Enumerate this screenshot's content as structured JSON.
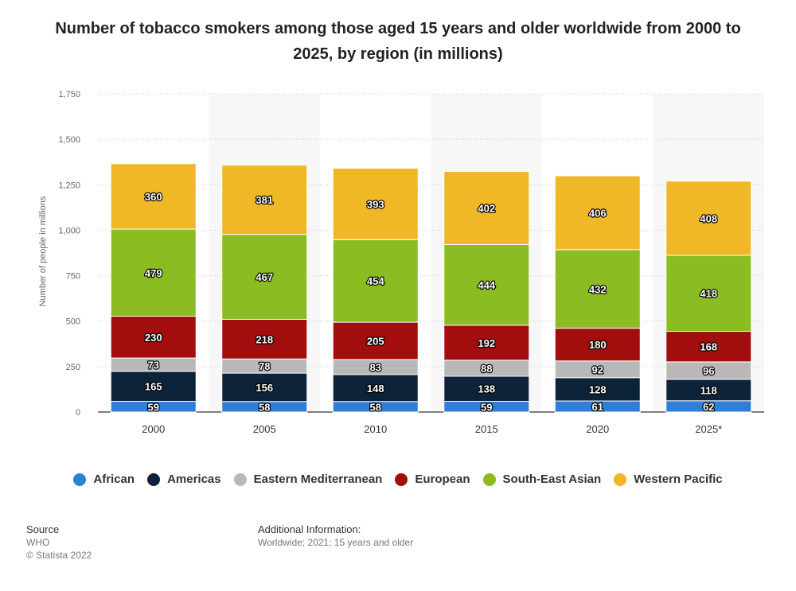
{
  "header": {
    "title": "Number of tobacco smokers among those aged 15 years and older worldwide from 2000 to 2025, by region (in millions)"
  },
  "chart_data": {
    "type": "bar",
    "stacked": true,
    "title": "Number of tobacco smokers among those aged 15 years and older worldwide from 2000 to 2025, by region (in millions)",
    "xlabel": "",
    "ylabel": "Number of people in millions",
    "ylim": [
      0,
      1750
    ],
    "yticks": [
      0,
      250,
      500,
      750,
      "1,000",
      "1,250",
      "1,500",
      "1,750"
    ],
    "ytick_values": [
      0,
      250,
      500,
      750,
      1000,
      1250,
      1500,
      1750
    ],
    "categories": [
      "2000",
      "2005",
      "2010",
      "2015",
      "2020",
      "2025*"
    ],
    "grid": true,
    "legend_position": "bottom",
    "series": [
      {
        "name": "African",
        "color": "#2f7ed8",
        "values": [
          59,
          58,
          58,
          59,
          61,
          62
        ]
      },
      {
        "name": "Americas",
        "color": "#0d233a",
        "values": [
          165,
          156,
          148,
          138,
          128,
          118
        ]
      },
      {
        "name": "Eastern Mediterranean",
        "color": "#b8b8b8",
        "values": [
          73,
          78,
          83,
          88,
          92,
          96
        ]
      },
      {
        "name": "European",
        "color": "#a20d0d",
        "values": [
          230,
          218,
          205,
          192,
          180,
          168
        ]
      },
      {
        "name": "South-East Asian",
        "color": "#8bbc21",
        "values": [
          479,
          467,
          454,
          444,
          432,
          418
        ]
      },
      {
        "name": "Western Pacific",
        "color": "#f0b727",
        "values": [
          360,
          381,
          393,
          402,
          406,
          408
        ]
      }
    ]
  },
  "footer": {
    "source_heading": "Source",
    "source_name": "WHO",
    "copyright": "© Statista 2022",
    "info_heading": "Additional Information:",
    "info_text": "Worldwide; 2021; 15 years and older"
  }
}
